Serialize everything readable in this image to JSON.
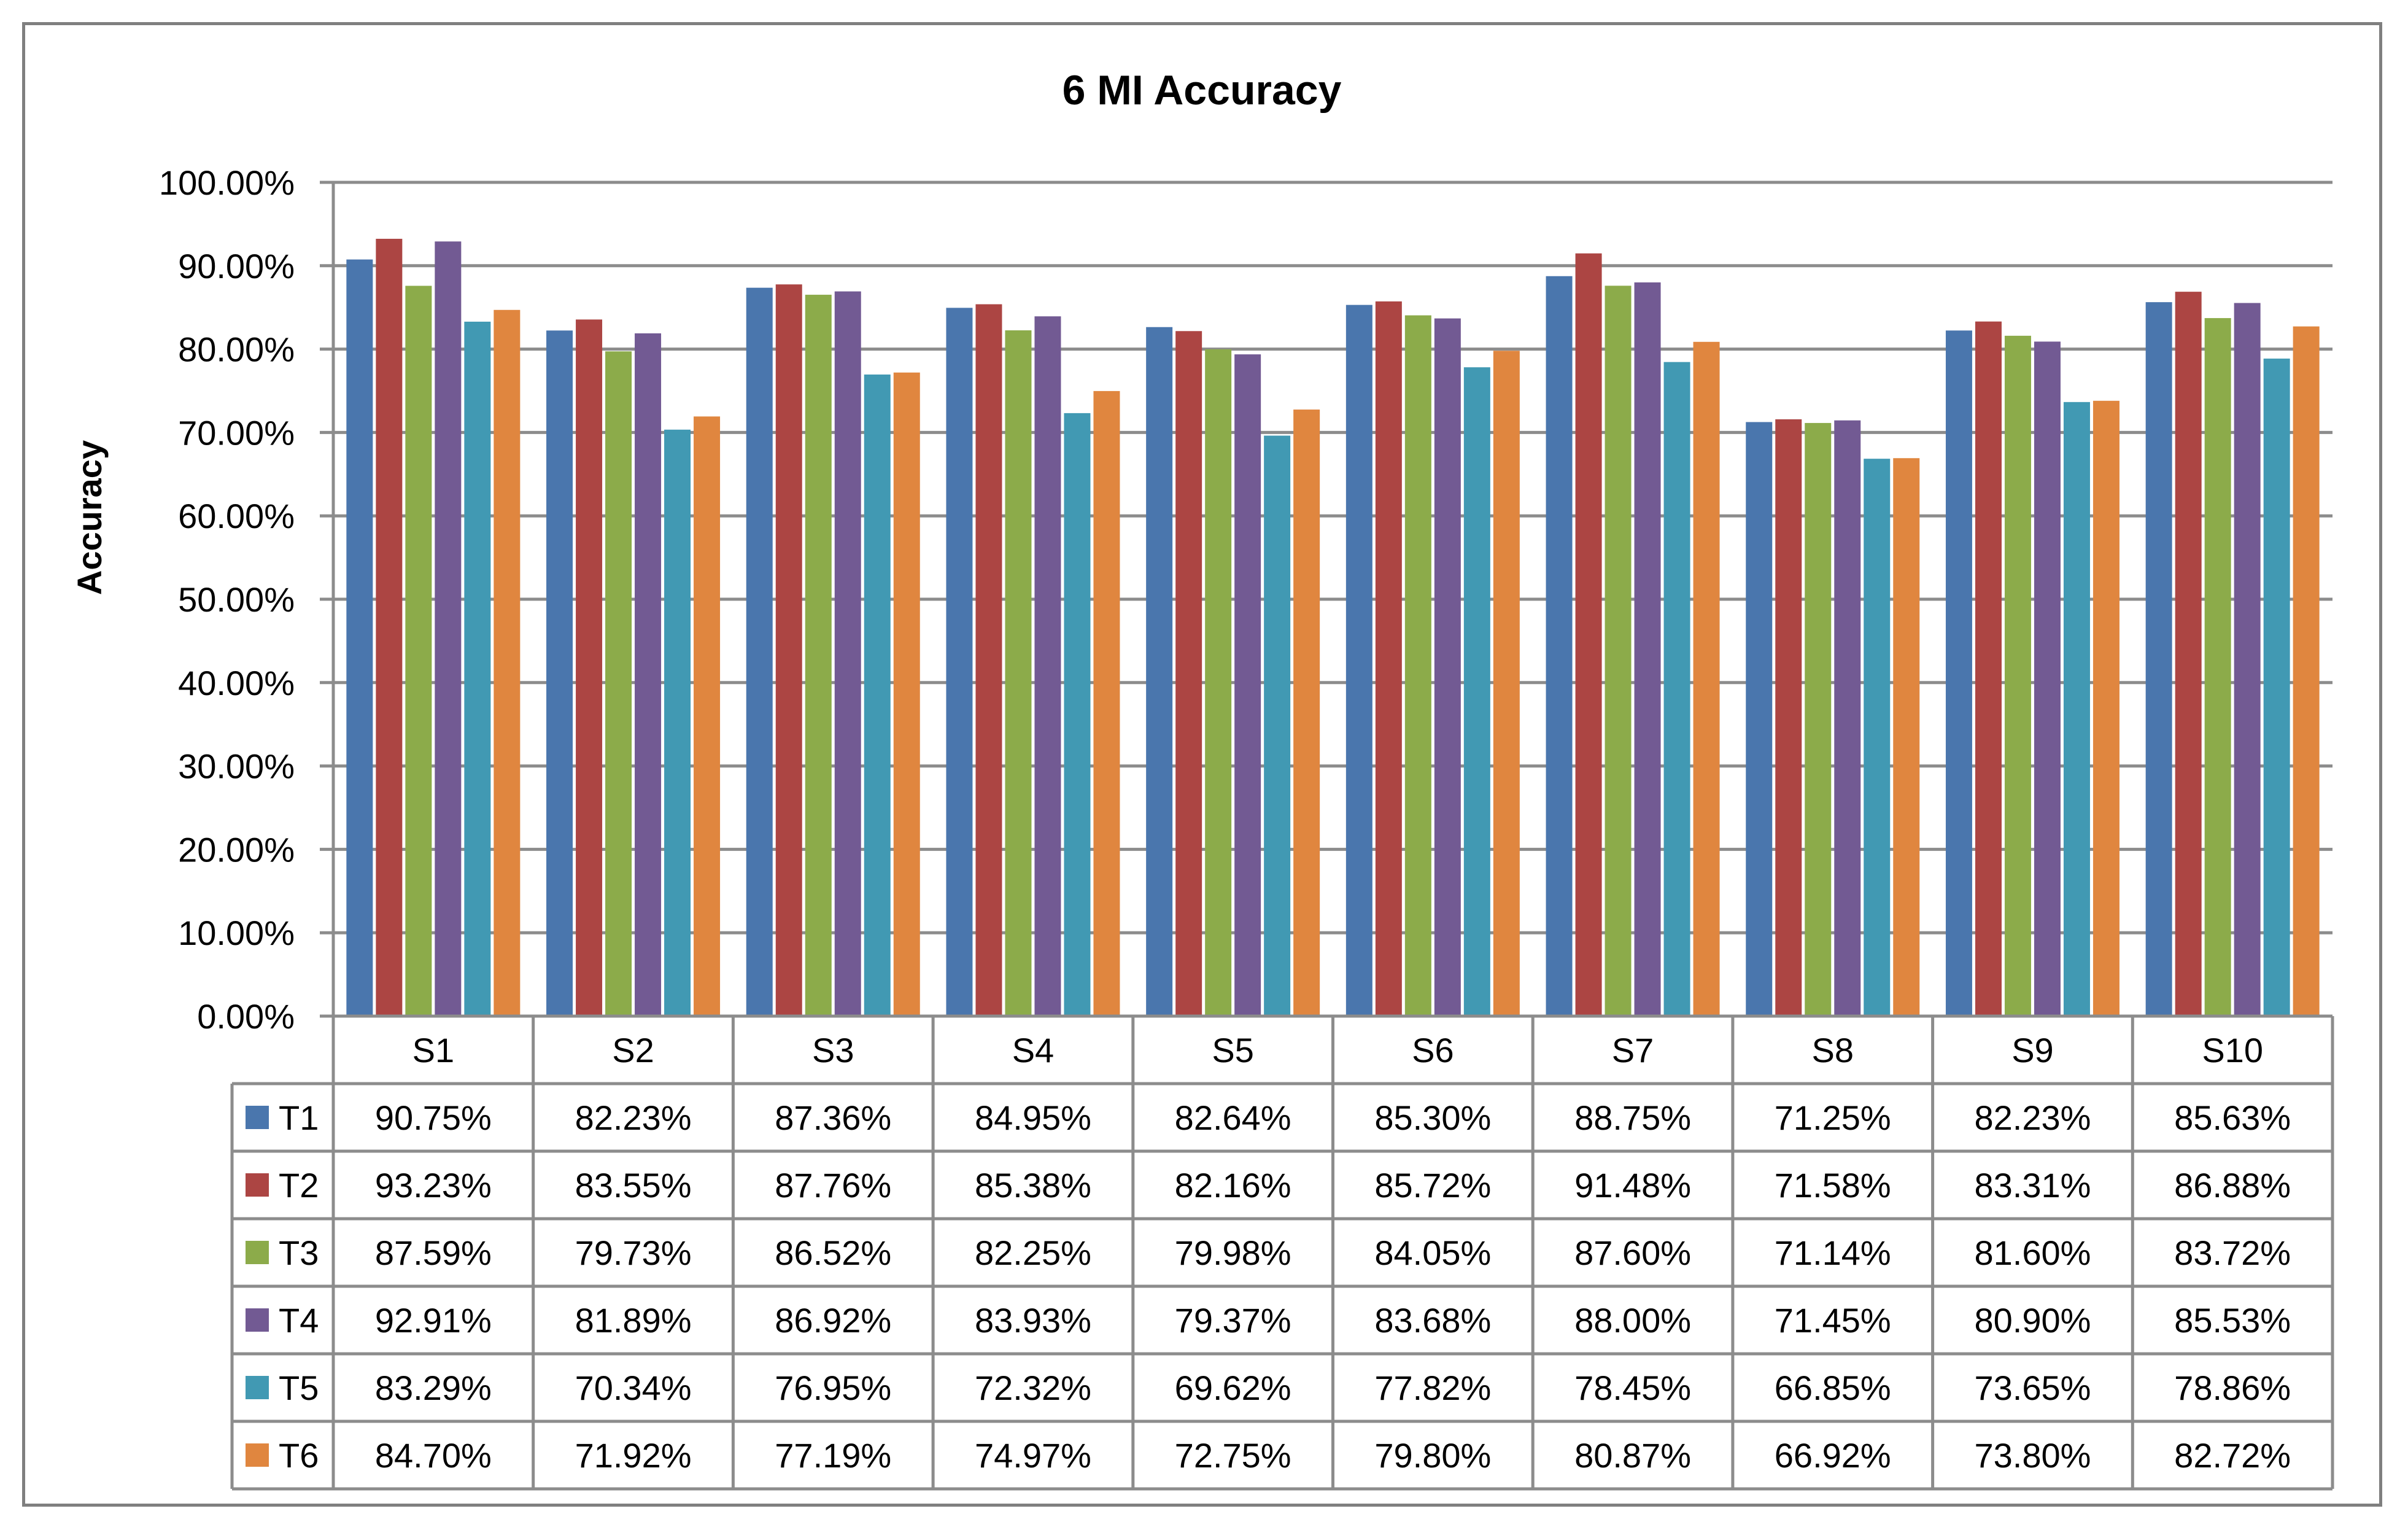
{
  "chart_data": {
    "type": "bar",
    "title": "6 MI Accuracy",
    "xlabel": "",
    "ylabel": "Accuracy",
    "ylim": [
      0,
      100
    ],
    "yticks": [
      "0.00%",
      "10.00%",
      "20.00%",
      "30.00%",
      "40.00%",
      "50.00%",
      "60.00%",
      "70.00%",
      "80.00%",
      "90.00%",
      "100.00%"
    ],
    "grid": true,
    "legend": "data-table",
    "categories": [
      "S1",
      "S2",
      "S3",
      "S4",
      "S5",
      "S6",
      "S7",
      "S8",
      "S9",
      "S10"
    ],
    "series": [
      {
        "name": "T1",
        "color": "#4a76ad",
        "values": [
          90.75,
          82.23,
          87.36,
          84.95,
          82.64,
          85.3,
          88.75,
          71.25,
          82.23,
          85.63
        ],
        "labels": [
          "90.75%",
          "82.23%",
          "87.36%",
          "84.95%",
          "82.64%",
          "85.30%",
          "88.75%",
          "71.25%",
          "82.23%",
          "85.63%"
        ]
      },
      {
        "name": "T2",
        "color": "#ac4543",
        "values": [
          93.23,
          83.55,
          87.76,
          85.38,
          82.16,
          85.72,
          91.48,
          71.58,
          83.31,
          86.88
        ],
        "labels": [
          "93.23%",
          "83.55%",
          "87.76%",
          "85.38%",
          "82.16%",
          "85.72%",
          "91.48%",
          "71.58%",
          "83.31%",
          "86.88%"
        ]
      },
      {
        "name": "T3",
        "color": "#8cab4a",
        "values": [
          87.59,
          79.73,
          86.52,
          82.25,
          79.98,
          84.05,
          87.6,
          71.14,
          81.6,
          83.72
        ],
        "labels": [
          "87.59%",
          "79.73%",
          "86.52%",
          "82.25%",
          "79.98%",
          "84.05%",
          "87.60%",
          "71.14%",
          "81.60%",
          "83.72%"
        ]
      },
      {
        "name": "T4",
        "color": "#725a93",
        "values": [
          92.91,
          81.89,
          86.92,
          83.93,
          79.37,
          83.68,
          88.0,
          71.45,
          80.9,
          85.53
        ],
        "labels": [
          "92.91%",
          "81.89%",
          "86.92%",
          "83.93%",
          "79.37%",
          "83.68%",
          "88.00%",
          "71.45%",
          "80.90%",
          "85.53%"
        ]
      },
      {
        "name": "T5",
        "color": "#4199b3",
        "values": [
          83.29,
          70.34,
          76.95,
          72.32,
          69.62,
          77.82,
          78.45,
          66.85,
          73.65,
          78.86
        ],
        "labels": [
          "83.29%",
          "70.34%",
          "76.95%",
          "72.32%",
          "69.62%",
          "77.82%",
          "78.45%",
          "66.85%",
          "73.65%",
          "78.86%"
        ]
      },
      {
        "name": "T6",
        "color": "#e0863f",
        "values": [
          84.7,
          71.92,
          77.19,
          74.97,
          72.75,
          79.8,
          80.87,
          66.92,
          73.8,
          82.72
        ],
        "labels": [
          "84.70%",
          "71.92%",
          "77.19%",
          "74.97%",
          "72.75%",
          "79.80%",
          "80.87%",
          "66.92%",
          "73.80%",
          "82.72%"
        ]
      }
    ]
  }
}
